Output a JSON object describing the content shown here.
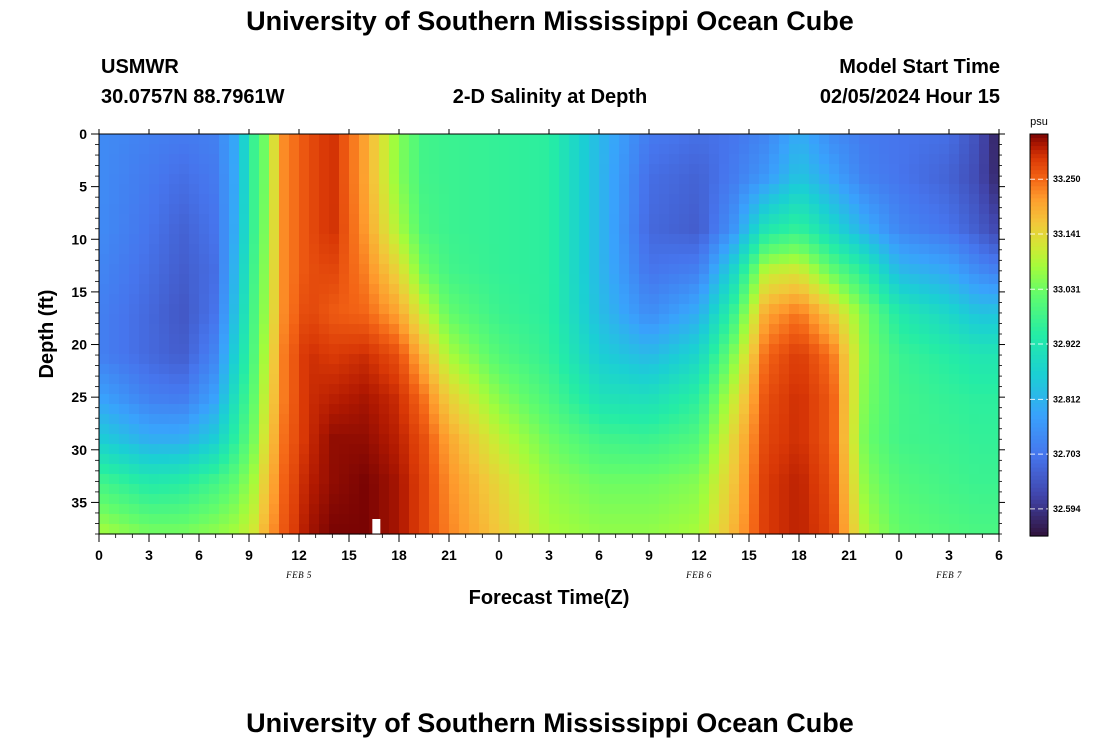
{
  "page": {
    "title_top": "University of Southern Mississippi Ocean Cube",
    "title_bottom": "University of Southern Mississippi Ocean Cube",
    "station": "USMWR",
    "coords": "30.0757N  88.7961W",
    "subtitle": "2-D Salinity at Depth",
    "model_label": "Model Start Time",
    "model_time": "02/05/2024 Hour 15"
  },
  "chart_data": {
    "type": "heatmap",
    "title": "2-D Salinity at Depth",
    "xlabel": "Forecast Time(Z)",
    "ylabel": "Depth (ft)",
    "x_range_hours": [
      0,
      54
    ],
    "x_tick_hours": [
      0,
      3,
      6,
      9,
      12,
      15,
      18,
      21,
      24,
      27,
      30,
      33,
      36,
      39,
      42,
      45,
      48,
      51,
      54
    ],
    "x_tick_labels": [
      "0",
      "3",
      "6",
      "9",
      "12",
      "15",
      "18",
      "21",
      "0",
      "3",
      "6",
      "9",
      "12",
      "15",
      "18",
      "21",
      "0",
      "3",
      "6"
    ],
    "date_labels": [
      {
        "text": "FEB 5",
        "hour": 12
      },
      {
        "text": "FEB 6",
        "hour": 36
      },
      {
        "text": "FEB 7",
        "hour": 51
      }
    ],
    "y_range_ft": [
      0,
      38
    ],
    "y_tick_values": [
      0,
      5,
      10,
      15,
      20,
      25,
      30,
      35
    ],
    "y_tick_labels": [
      "0",
      "5",
      "10",
      "15",
      "20",
      "25",
      "30",
      "35"
    ],
    "colorbar": {
      "unit": "psu",
      "min": 32.54,
      "max": 33.34,
      "tick_values": [
        33.25,
        33.141,
        33.031,
        32.922,
        32.812,
        32.703,
        32.594
      ],
      "tick_labels": [
        "33.250",
        "33.141",
        "33.031",
        "32.922",
        "32.812",
        "32.703",
        "32.594"
      ]
    },
    "field_profiles": [
      {
        "hour": 0,
        "values": [
          32.74,
          32.74,
          32.74,
          32.73,
          32.72,
          32.72,
          32.78,
          32.86,
          32.98,
          33.08
        ]
      },
      {
        "hour": 3,
        "values": [
          32.72,
          32.71,
          32.7,
          32.69,
          32.68,
          32.68,
          32.72,
          32.8,
          32.93,
          33.04
        ]
      },
      {
        "hour": 5,
        "values": [
          32.71,
          32.69,
          32.67,
          32.66,
          32.65,
          32.66,
          32.71,
          32.8,
          32.94,
          33.04
        ]
      },
      {
        "hour": 7,
        "values": [
          32.72,
          32.71,
          32.7,
          32.69,
          32.7,
          32.73,
          32.78,
          32.86,
          32.98,
          33.06
        ]
      },
      {
        "hour": 8.3,
        "values": [
          32.8,
          32.8,
          32.81,
          32.83,
          32.85,
          32.88,
          32.92,
          32.96,
          33.02,
          33.08
        ]
      },
      {
        "hour": 9.3,
        "values": [
          32.97,
          32.97,
          32.97,
          32.98,
          32.99,
          33.0,
          33.02,
          33.04,
          33.08,
          33.12
        ]
      },
      {
        "hour": 10,
        "values": [
          33.04,
          33.04,
          33.05,
          33.06,
          33.07,
          33.09,
          33.11,
          33.13,
          33.16,
          33.19
        ]
      },
      {
        "hour": 11,
        "values": [
          33.22,
          33.22,
          33.22,
          33.22,
          33.22,
          33.23,
          33.23,
          33.24,
          33.25,
          33.26
        ]
      },
      {
        "hour": 12.5,
        "values": [
          33.27,
          33.27,
          33.27,
          33.27,
          33.28,
          33.3,
          33.3,
          33.3,
          33.31,
          33.32
        ]
      },
      {
        "hour": 14,
        "values": [
          33.3,
          33.3,
          33.3,
          33.28,
          33.26,
          33.29,
          33.31,
          33.33,
          33.33,
          33.34
        ]
      },
      {
        "hour": 16,
        "values": [
          33.2,
          33.2,
          33.21,
          33.23,
          33.25,
          33.3,
          33.32,
          33.33,
          33.34,
          33.34
        ]
      },
      {
        "hour": 18,
        "values": [
          33.05,
          33.05,
          33.08,
          33.14,
          33.2,
          33.27,
          33.3,
          33.31,
          33.32,
          33.32
        ]
      },
      {
        "hour": 19.5,
        "values": [
          32.98,
          32.98,
          32.99,
          33.03,
          33.1,
          33.18,
          33.24,
          33.27,
          33.28,
          33.28
        ]
      },
      {
        "hour": 21,
        "values": [
          32.97,
          32.97,
          32.97,
          32.98,
          33.02,
          33.08,
          33.15,
          33.2,
          33.22,
          33.23
        ]
      },
      {
        "hour": 24,
        "values": [
          32.96,
          32.96,
          32.96,
          32.96,
          32.97,
          33.0,
          33.05,
          33.1,
          33.14,
          33.16
        ]
      },
      {
        "hour": 27,
        "values": [
          32.95,
          32.95,
          32.95,
          32.95,
          32.95,
          32.96,
          32.99,
          33.03,
          33.06,
          33.08
        ]
      },
      {
        "hour": 30,
        "values": [
          32.82,
          32.82,
          32.82,
          32.82,
          32.83,
          32.86,
          32.91,
          32.98,
          33.03,
          33.06
        ]
      },
      {
        "hour": 33,
        "values": [
          32.71,
          32.69,
          32.68,
          32.7,
          32.74,
          32.82,
          32.9,
          32.97,
          33.03,
          33.06
        ]
      },
      {
        "hour": 36,
        "values": [
          32.69,
          32.67,
          32.66,
          32.72,
          32.8,
          32.88,
          32.95,
          33.0,
          33.05,
          33.08
        ]
      },
      {
        "hour": 38,
        "values": [
          32.7,
          32.71,
          32.75,
          32.87,
          32.96,
          33.04,
          33.1,
          33.14,
          33.16,
          33.18
        ]
      },
      {
        "hour": 40,
        "values": [
          32.73,
          32.76,
          32.92,
          33.1,
          33.2,
          33.25,
          33.27,
          33.28,
          33.29,
          33.29
        ]
      },
      {
        "hour": 42,
        "values": [
          32.8,
          32.84,
          32.96,
          33.12,
          33.24,
          33.29,
          33.3,
          33.3,
          33.31,
          33.31
        ]
      },
      {
        "hour": 44,
        "values": [
          32.74,
          32.78,
          32.88,
          33.02,
          33.16,
          33.24,
          33.26,
          33.26,
          33.27,
          33.28
        ]
      },
      {
        "hour": 46,
        "values": [
          32.71,
          32.72,
          32.8,
          32.94,
          33.04,
          33.05,
          33.04,
          33.03,
          33.05,
          33.08
        ]
      },
      {
        "hour": 48,
        "values": [
          32.7,
          32.7,
          32.73,
          32.82,
          32.93,
          32.97,
          32.98,
          32.98,
          33.0,
          33.02
        ]
      },
      {
        "hour": 51,
        "values": [
          32.69,
          32.67,
          32.7,
          32.79,
          32.88,
          32.94,
          32.96,
          32.97,
          32.98,
          33.0
        ]
      },
      {
        "hour": 52.7,
        "values": [
          32.64,
          32.63,
          32.66,
          32.74,
          32.84,
          32.92,
          32.95,
          32.96,
          32.97,
          32.99
        ]
      },
      {
        "hour": 54,
        "values": [
          32.56,
          32.57,
          32.62,
          32.72,
          32.84,
          32.92,
          32.95,
          32.96,
          32.97,
          32.99
        ]
      }
    ],
    "profile_depths_ft": [
      0,
      4,
      9,
      13,
      17,
      21,
      25,
      29,
      33,
      38
    ]
  }
}
